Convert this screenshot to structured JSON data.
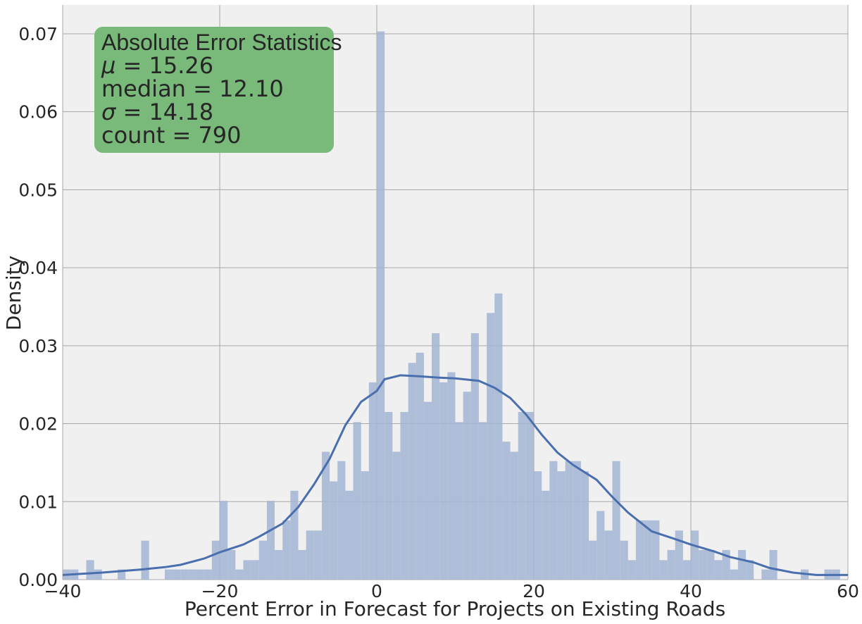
{
  "chart_data": {
    "type": "bar",
    "xlabel": "Percent Error in Forecast for Projects on Existing Roads",
    "ylabel": "Density",
    "xlim": [
      -40,
      60
    ],
    "ylim": [
      0,
      0.0737
    ],
    "xticks": [
      -40,
      -20,
      0,
      20,
      40,
      60
    ],
    "xtick_labels": [
      "−40",
      "−20",
      "0",
      "20",
      "40",
      "60"
    ],
    "yticks": [
      0,
      0.01,
      0.02,
      0.03,
      0.04,
      0.05,
      0.06,
      0.07
    ],
    "ytick_labels": [
      "0.00",
      "0.01",
      "0.02",
      "0.03",
      "0.04",
      "0.05",
      "0.06",
      "0.07"
    ],
    "grid": true,
    "bin_width": 1,
    "histogram": [
      [
        -40,
        0.0013
      ],
      [
        -39,
        0.0013
      ],
      [
        -38,
        0.0
      ],
      [
        -37,
        0.0025
      ],
      [
        -36,
        0.0013
      ],
      [
        -35,
        0.0
      ],
      [
        -34,
        0.0
      ],
      [
        -33,
        0.0013
      ],
      [
        -32,
        0.0
      ],
      [
        -31,
        0.0
      ],
      [
        -30,
        0.005
      ],
      [
        -29,
        0.0
      ],
      [
        -28,
        0.0
      ],
      [
        -27,
        0.0013
      ],
      [
        -26,
        0.0013
      ],
      [
        -25,
        0.0013
      ],
      [
        -24,
        0.0013
      ],
      [
        -23,
        0.0013
      ],
      [
        -22,
        0.0013
      ],
      [
        -21,
        0.005
      ],
      [
        -20,
        0.0101
      ],
      [
        -19,
        0.0038
      ],
      [
        -18,
        0.0013
      ],
      [
        -17,
        0.0025
      ],
      [
        -16,
        0.0025
      ],
      [
        -15,
        0.005
      ],
      [
        -14,
        0.0101
      ],
      [
        -13,
        0.0038
      ],
      [
        -12,
        0.0076
      ],
      [
        -11,
        0.0114
      ],
      [
        -10,
        0.0038
      ],
      [
        -9,
        0.0063
      ],
      [
        -8,
        0.0063
      ],
      [
        -7,
        0.0164
      ],
      [
        -6,
        0.0126
      ],
      [
        -5,
        0.0152
      ],
      [
        -4,
        0.0114
      ],
      [
        -3,
        0.0202
      ],
      [
        -2,
        0.0139
      ],
      [
        -1,
        0.0253
      ],
      [
        0,
        0.0703
      ],
      [
        1,
        0.0215
      ],
      [
        2,
        0.0164
      ],
      [
        3,
        0.0215
      ],
      [
        4,
        0.0278
      ],
      [
        5,
        0.0291
      ],
      [
        6,
        0.0228
      ],
      [
        7,
        0.0316
      ],
      [
        8,
        0.0253
      ],
      [
        9,
        0.0266
      ],
      [
        10,
        0.0202
      ],
      [
        11,
        0.0241
      ],
      [
        12,
        0.0316
      ],
      [
        13,
        0.0202
      ],
      [
        14,
        0.0342
      ],
      [
        15,
        0.0367
      ],
      [
        16,
        0.0177
      ],
      [
        17,
        0.0164
      ],
      [
        18,
        0.0215
      ],
      [
        19,
        0.0215
      ],
      [
        20,
        0.0139
      ],
      [
        21,
        0.0114
      ],
      [
        22,
        0.0152
      ],
      [
        23,
        0.0139
      ],
      [
        24,
        0.0152
      ],
      [
        25,
        0.0152
      ],
      [
        26,
        0.0139
      ],
      [
        27,
        0.005
      ],
      [
        28,
        0.0088
      ],
      [
        29,
        0.0063
      ],
      [
        30,
        0.0152
      ],
      [
        31,
        0.005
      ],
      [
        32,
        0.0025
      ],
      [
        33,
        0.0076
      ],
      [
        34,
        0.0076
      ],
      [
        35,
        0.0076
      ],
      [
        36,
        0.0025
      ],
      [
        37,
        0.0038
      ],
      [
        38,
        0.0063
      ],
      [
        39,
        0.0025
      ],
      [
        40,
        0.0063
      ],
      [
        41,
        0.0038
      ],
      [
        42,
        0.0038
      ],
      [
        43,
        0.0025
      ],
      [
        44,
        0.0038
      ],
      [
        45,
        0.0013
      ],
      [
        46,
        0.0038
      ],
      [
        47,
        0.0025
      ],
      [
        48,
        0.0
      ],
      [
        49,
        0.0013
      ],
      [
        50,
        0.0038
      ],
      [
        51,
        0.0
      ],
      [
        52,
        0.0
      ],
      [
        53,
        0.0
      ],
      [
        54,
        0.0013
      ],
      [
        55,
        0.0
      ],
      [
        56,
        0.0
      ],
      [
        57,
        0.0013
      ],
      [
        58,
        0.0013
      ],
      [
        59,
        0.0
      ]
    ],
    "kde": [
      [
        -40,
        0.0006
      ],
      [
        -35,
        0.0009
      ],
      [
        -30,
        0.0013
      ],
      [
        -27,
        0.0016
      ],
      [
        -25,
        0.0019
      ],
      [
        -22,
        0.0027
      ],
      [
        -20,
        0.0035
      ],
      [
        -17,
        0.0045
      ],
      [
        -15,
        0.0055
      ],
      [
        -12,
        0.0072
      ],
      [
        -10,
        0.0093
      ],
      [
        -8,
        0.0122
      ],
      [
        -6,
        0.0155
      ],
      [
        -4,
        0.0198
      ],
      [
        -2,
        0.0228
      ],
      [
        0,
        0.0242
      ],
      [
        1,
        0.0257
      ],
      [
        3,
        0.0262
      ],
      [
        5,
        0.0261
      ],
      [
        8,
        0.0259
      ],
      [
        10,
        0.0258
      ],
      [
        13,
        0.0255
      ],
      [
        15,
        0.0246
      ],
      [
        17,
        0.0233
      ],
      [
        19,
        0.0212
      ],
      [
        21,
        0.0186
      ],
      [
        23,
        0.0163
      ],
      [
        25,
        0.0147
      ],
      [
        28,
        0.0128
      ],
      [
        30,
        0.0106
      ],
      [
        32,
        0.0086
      ],
      [
        35,
        0.0062
      ],
      [
        38,
        0.0052
      ],
      [
        40,
        0.0045
      ],
      [
        43,
        0.0036
      ],
      [
        45,
        0.0029
      ],
      [
        48,
        0.0022
      ],
      [
        50,
        0.0015
      ],
      [
        53,
        0.0009
      ],
      [
        56,
        0.0006
      ],
      [
        60,
        0.0006
      ]
    ],
    "bar_color": "#a3b5d4",
    "line_color": "#4a6fae",
    "annotation": {
      "title": "Absolute Error Statistics",
      "lines": [
        {
          "label": "μ",
          "value": "15.26"
        },
        {
          "label": "median",
          "value": "12.10"
        },
        {
          "label": "σ",
          "value": "14.18"
        },
        {
          "label": "count",
          "value": "790"
        }
      ],
      "box_color": "#79b97a"
    }
  }
}
